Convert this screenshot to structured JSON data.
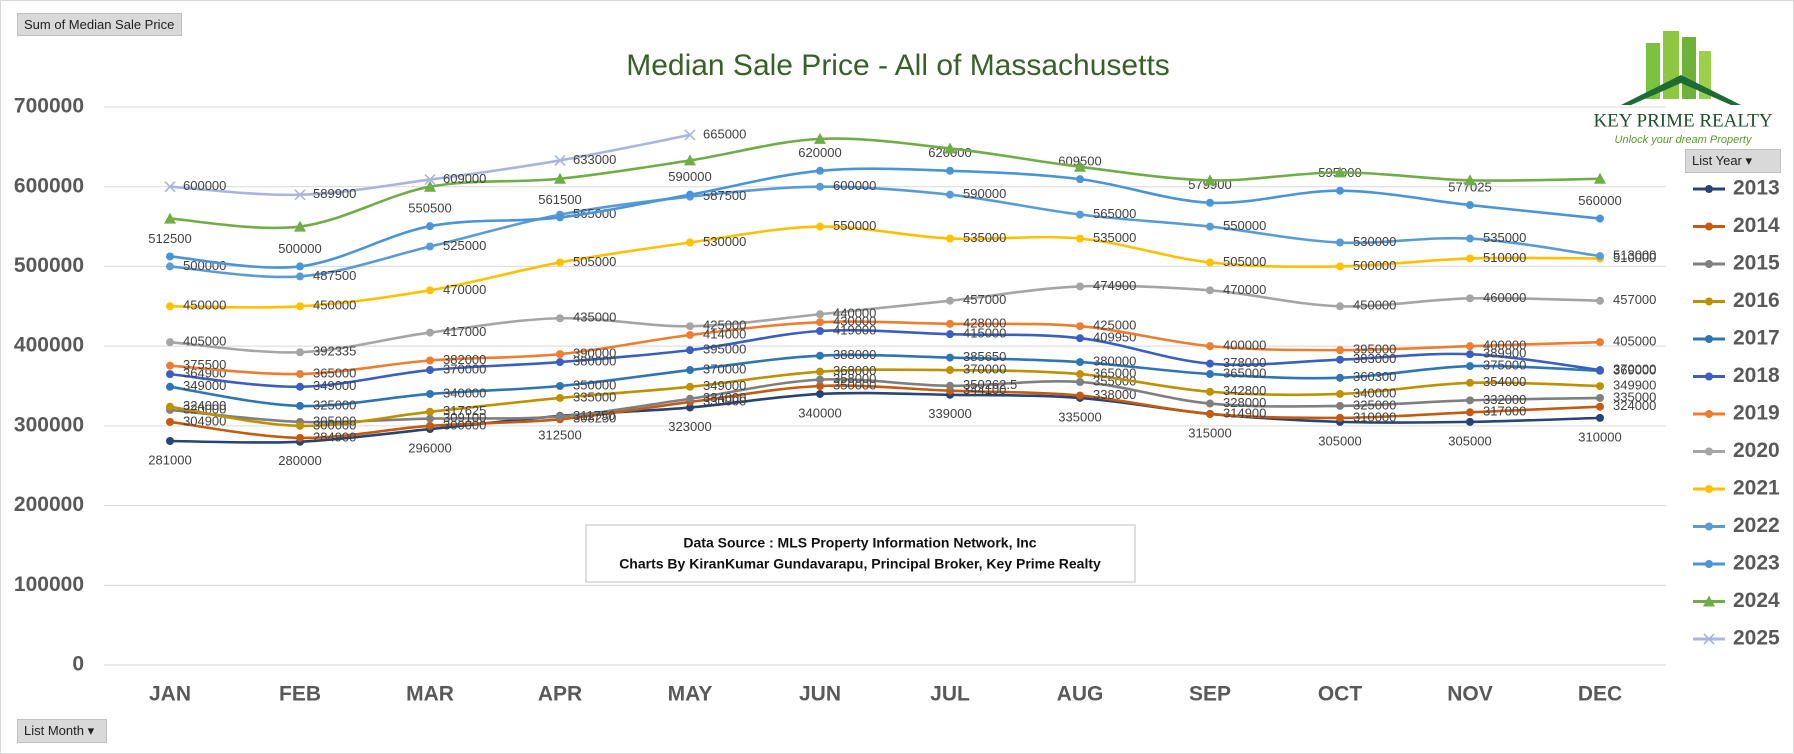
{
  "chart_data": {
    "type": "line",
    "title": "Median Sale Price - All of Massachusetts",
    "categories": [
      "JAN",
      "FEB",
      "MAR",
      "APR",
      "MAY",
      "JUN",
      "JUL",
      "AUG",
      "SEP",
      "OCT",
      "NOV",
      "DEC"
    ],
    "ylim": [
      0,
      700000
    ],
    "yticks": [
      0,
      100000,
      200000,
      300000,
      400000,
      500000,
      600000,
      700000
    ],
    "grid": true,
    "legend_title": "List Year",
    "legend": "right",
    "annotations": [
      "Data Source : MLS Property Information Network, Inc",
      "Charts By KiranKumar Gundavarapu, Principal Broker, Key Prime Realty"
    ],
    "series": [
      {
        "name": "2013",
        "color": "#264478",
        "marker": "circle",
        "data_labels": true,
        "values": [
          281000,
          280000,
          296000,
          312500,
          323000,
          340000,
          339000,
          335000,
          315000,
          305000,
          305000,
          310000
        ]
      },
      {
        "name": "2014",
        "color": "#c55a11",
        "marker": "circle",
        "data_labels": true,
        "values": [
          304900,
          284900,
          300000,
          308250,
          330000,
          350000,
          344100,
          338000,
          314900,
          310000,
          317000,
          324000
        ]
      },
      {
        "name": "2015",
        "color": "#7f7f7f",
        "marker": "circle",
        "data_labels": true,
        "values": [
          320000,
          305000,
          309100,
          311750,
          334000,
          358000,
          350262.5,
          355000,
          328000,
          325000,
          332000,
          335000
        ]
      },
      {
        "name": "2016",
        "color": "#bf9000",
        "marker": "circle",
        "data_labels": true,
        "values": [
          324000,
          300000,
          317625,
          335000,
          349000,
          368000,
          370000,
          365000,
          342800,
          340000,
          354000,
          349900
        ]
      },
      {
        "name": "2017",
        "color": "#2e75b6",
        "marker": "circle",
        "data_labels": true,
        "values": [
          349000,
          325000,
          340000,
          350000,
          370000,
          388000,
          385650,
          380000,
          365000,
          360300,
          375000,
          369000
        ]
      },
      {
        "name": "2018",
        "color": "#3a5fc0",
        "marker": "circle",
        "data_labels": true,
        "values": [
          364900,
          349000,
          370000,
          380000,
          395000,
          419000,
          415000,
          409950,
          378000,
          383000,
          389900,
          370000
        ]
      },
      {
        "name": "2019",
        "color": "#ed7d31",
        "marker": "circle",
        "data_labels": true,
        "values": [
          375500,
          365000,
          382000,
          390000,
          414000,
          430000,
          428000,
          425000,
          400000,
          395000,
          400000,
          405000
        ]
      },
      {
        "name": "2020",
        "color": "#a5a5a5",
        "marker": "circle",
        "data_labels": true,
        "values": [
          405000,
          392335,
          417000,
          435000,
          425000,
          440000,
          457000,
          474900,
          470000,
          450000,
          460000,
          457000
        ]
      },
      {
        "name": "2021",
        "color": "#ffc000",
        "marker": "circle",
        "data_labels": true,
        "values": [
          450000,
          450000,
          470000,
          505000,
          530000,
          550000,
          535000,
          535000,
          505000,
          500000,
          510000,
          510000
        ]
      },
      {
        "name": "2022",
        "color": "#5b9bd5",
        "marker": "circle",
        "data_labels": true,
        "values": [
          500000,
          487500,
          525000,
          565000,
          587500,
          600000,
          590000,
          565000,
          550000,
          530000,
          535000,
          513000
        ]
      },
      {
        "name": "2023",
        "color": "#4a94d8",
        "marker": "circle",
        "data_labels": true,
        "values": [
          512500,
          500000,
          550500,
          561500,
          590000,
          620000,
          620000,
          609500,
          579900,
          595000,
          577025,
          560000
        ]
      },
      {
        "name": "2024",
        "color": "#70ad47",
        "marker": "triangle",
        "data_labels": false,
        "values": [
          560000,
          550000,
          600000,
          610000,
          633000,
          660000,
          648000,
          625000,
          608000,
          618000,
          608000,
          610000
        ]
      },
      {
        "name": "2025",
        "color": "#a9b4e0",
        "marker": "x",
        "data_labels": true,
        "values": [
          600000,
          589900,
          609000,
          633000,
          665000,
          null,
          null,
          null,
          null,
          null,
          null,
          null
        ]
      }
    ]
  },
  "controls": {
    "value_field": "Sum of Median Sale Price",
    "axis_field": "List Month"
  },
  "logo": {
    "name": "KEY PRIME REALTY",
    "tagline": "Unlock your dream Property"
  }
}
